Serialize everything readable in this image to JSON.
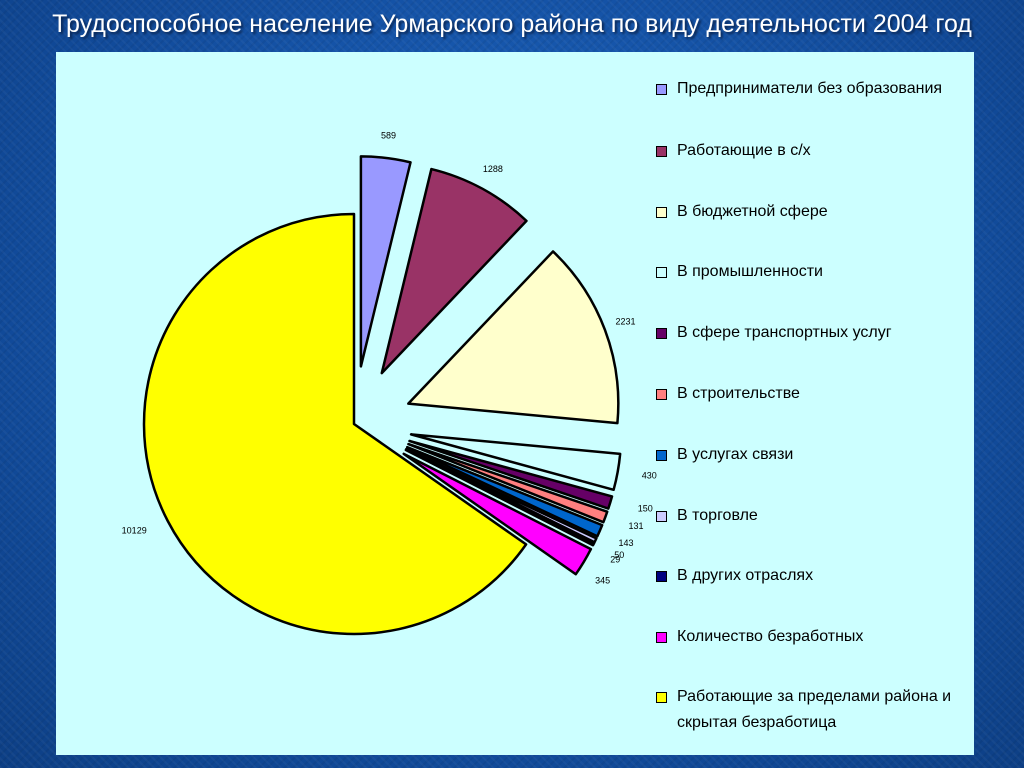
{
  "slide": {
    "title": "Трудоспособное население Урмарского района по виду деятельности 2004 год"
  },
  "chart_data": {
    "type": "pie",
    "title": "",
    "legend_position": "right",
    "slices": [
      {
        "label": "Предприниматели без образования",
        "value": 589,
        "color": "#9999ff"
      },
      {
        "label": "Работающие в с/х",
        "value": 1288,
        "color": "#993366"
      },
      {
        "label": "В бюджетной сфере",
        "value": 2231,
        "color": "#ffffcc"
      },
      {
        "label": "В промышленности",
        "value": 430,
        "color": "#ccffff"
      },
      {
        "label": "В сфере транспортных услуг",
        "value": 150,
        "color": "#660066"
      },
      {
        "label": "В строительстве",
        "value": 131,
        "color": "#ff8080"
      },
      {
        "label": "В услугах связи",
        "value": 143,
        "color": "#0066cc"
      },
      {
        "label": "В торговле",
        "value": 50,
        "color": "#ccccff"
      },
      {
        "label": "В других отраслях",
        "value": 29,
        "color": "#000080"
      },
      {
        "label": "Количество безработных",
        "value": 345,
        "color": "#ff00ff"
      },
      {
        "label": "Работающие за пределами района и скрытая безработица",
        "value": 10129,
        "color": "#ffff00"
      }
    ]
  }
}
